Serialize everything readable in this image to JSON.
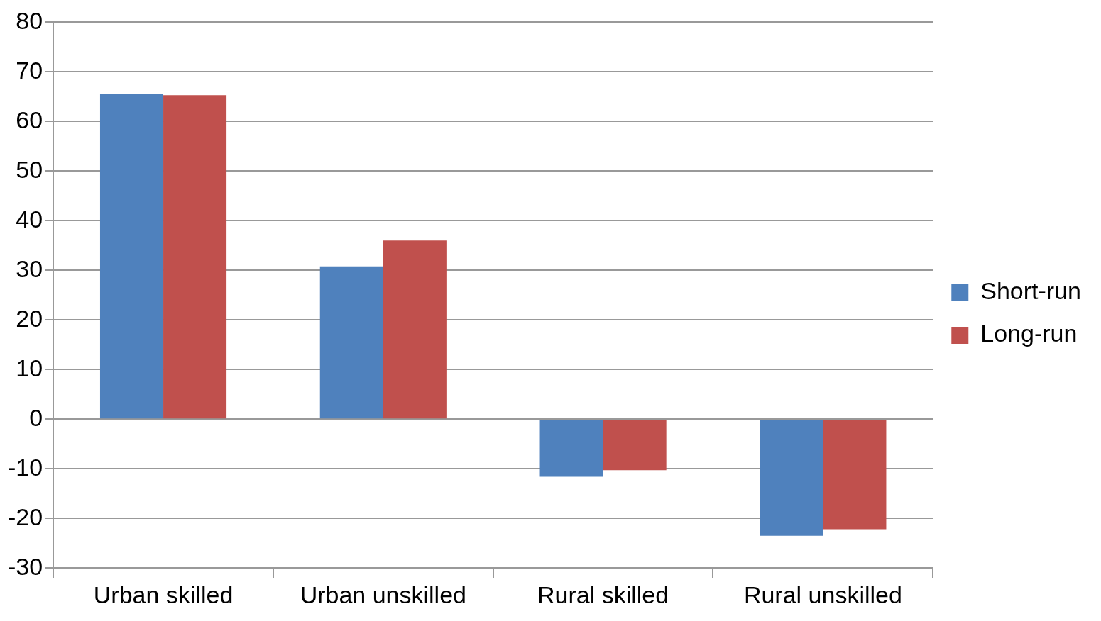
{
  "chart_data": {
    "type": "bar",
    "categories": [
      "Urban skilled",
      "Urban unskilled",
      "Rural skilled",
      "Rural unskilled"
    ],
    "series": [
      {
        "name": "Short-run",
        "color": "#4f81bd",
        "values": [
          65.6,
          30.8,
          -11.6,
          -23.5
        ]
      },
      {
        "name": "Long-run",
        "color": "#c0504d",
        "values": [
          65.3,
          36.0,
          -10.3,
          -22.2
        ]
      }
    ],
    "ylim": [
      -30,
      80
    ],
    "yticks": [
      -30,
      -20,
      -10,
      0,
      10,
      20,
      30,
      40,
      50,
      60,
      70,
      80
    ],
    "grid": "y",
    "legend": "right"
  }
}
